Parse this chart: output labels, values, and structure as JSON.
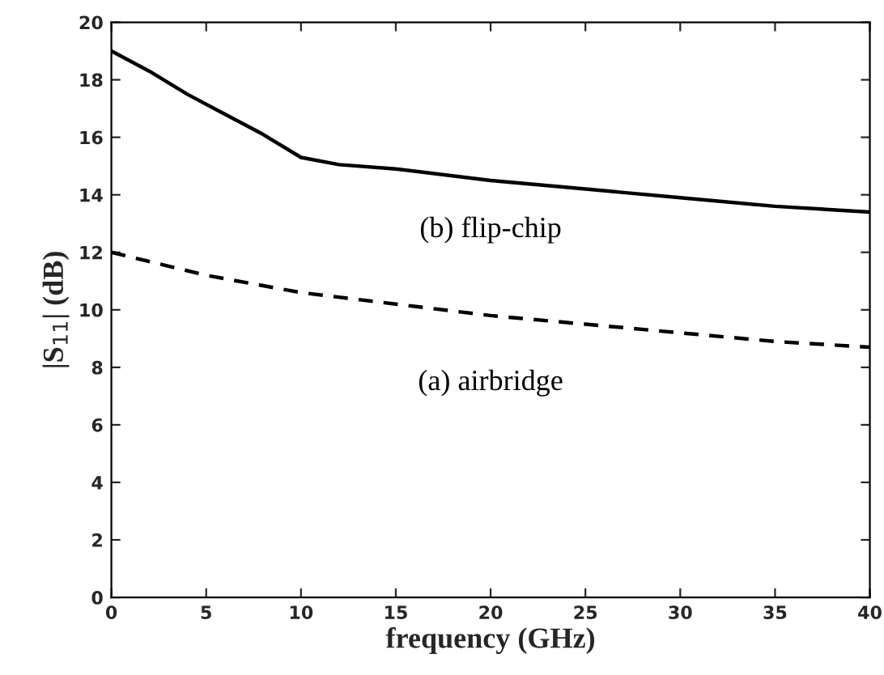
{
  "chart_data": {
    "type": "line",
    "xlabel": "frequency (GHz)",
    "ylabel": "|S$_{11}$| (dB)",
    "xlim": [
      0,
      40
    ],
    "ylim": [
      0,
      20
    ],
    "xticks": [
      0,
      5,
      10,
      15,
      20,
      25,
      30,
      35,
      40
    ],
    "yticks": [
      0,
      2,
      4,
      6,
      8,
      10,
      12,
      14,
      16,
      18,
      20
    ],
    "grid": false,
    "legend": false,
    "series": [
      {
        "name": "(b) flip-chip",
        "color": "#000000",
        "line_style": "solid",
        "x": [
          0,
          2,
          4,
          6,
          8,
          10,
          12,
          15,
          20,
          25,
          30,
          35,
          40
        ],
        "values": [
          19,
          18.3,
          17.5,
          16.8,
          16.1,
          15.3,
          15.05,
          14.9,
          14.5,
          14.2,
          13.9,
          13.6,
          13.4
        ]
      },
      {
        "name": "(a) airbridge",
        "color": "#000000",
        "line_style": "dashed",
        "x": [
          0,
          5,
          10,
          15,
          20,
          25,
          30,
          35,
          40
        ],
        "values": [
          12,
          11.2,
          10.6,
          10.2,
          9.8,
          9.5,
          9.2,
          8.9,
          8.7
        ]
      }
    ]
  }
}
